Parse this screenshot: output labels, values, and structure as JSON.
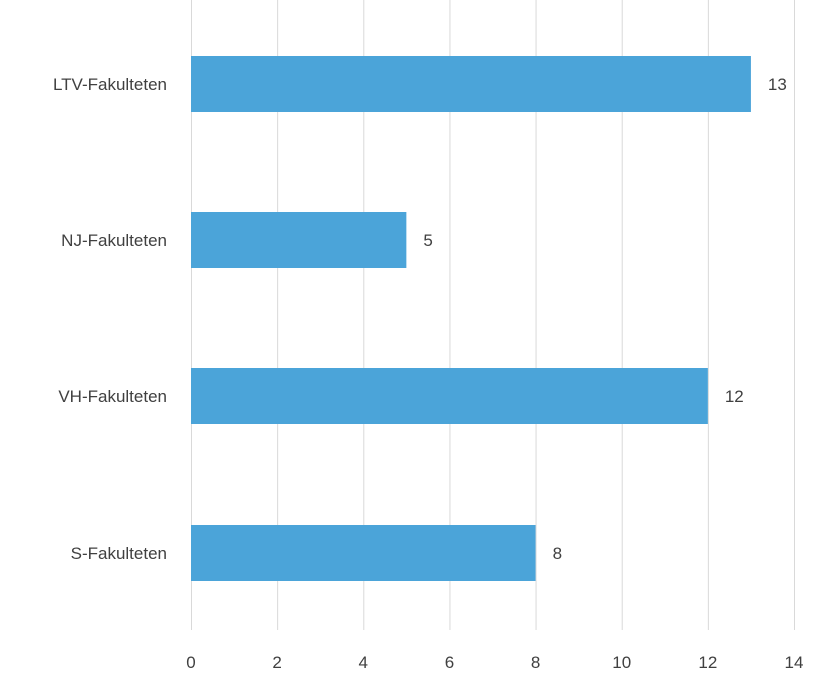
{
  "chart_data": {
    "type": "bar",
    "orientation": "horizontal",
    "categories": [
      "LTV-Fakulteten",
      "NJ-Fakulteten",
      "VH-Fakulteten",
      "S-Fakulteten"
    ],
    "values": [
      13,
      5,
      12,
      8
    ],
    "title": "",
    "xlabel": "",
    "ylabel": "",
    "xlim": [
      0,
      14
    ],
    "x_ticks": [
      "0",
      "2",
      "4",
      "6",
      "8",
      "10",
      "12",
      "14"
    ],
    "grid": "vertical",
    "legend": "none",
    "bar_color": "#4ba4d9",
    "data_labels": [
      "13",
      "5",
      "12",
      "8"
    ]
  }
}
